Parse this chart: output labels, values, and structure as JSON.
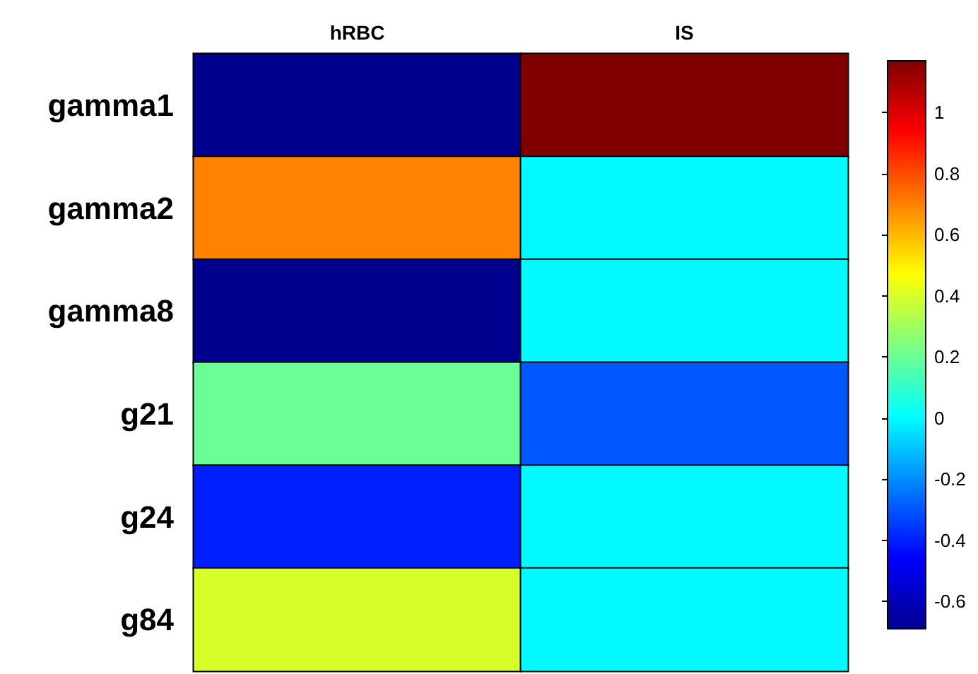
{
  "chart_data": {
    "type": "heatmap",
    "categories": [
      "hRBC",
      "IS"
    ],
    "y_categories": [
      "gamma1",
      "gamma2",
      "gamma8",
      "g21",
      "g24",
      "g84"
    ],
    "cells": [
      [
        -0.69,
        1.17
      ],
      [
        0.7,
        0.0
      ],
      [
        -0.69,
        0.0
      ],
      [
        0.2,
        -0.3
      ],
      [
        -0.4,
        0.0
      ],
      [
        0.4,
        0.0
      ]
    ],
    "clim": [
      -0.69,
      1.17
    ],
    "cticks": [
      -0.6,
      -0.4,
      -0.2,
      0,
      0.2,
      0.4,
      0.6,
      0.8,
      1
    ]
  }
}
